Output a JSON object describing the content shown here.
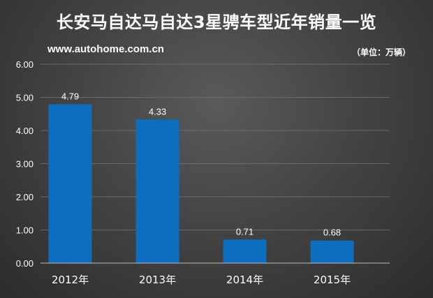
{
  "header": {
    "title": "长安马自达马自达3星骋车型近年销量一览",
    "source": "www.autohome.com.cn",
    "unit": "（单位：万辆）"
  },
  "colors": {
    "bar": "#0d6ebf",
    "gridline": "#777777",
    "text": "#ffffff"
  },
  "chart_data": {
    "type": "bar",
    "title": "长安马自达马自达3星骋车型近年销量一览",
    "xlabel": "",
    "ylabel": "",
    "unit": "（单位：万辆）",
    "categories": [
      "2012年",
      "2013年",
      "2014年",
      "2015年"
    ],
    "values": [
      4.79,
      4.33,
      0.71,
      0.68
    ],
    "data_labels": [
      "4.79",
      "4.33",
      "0.71",
      "0.68"
    ],
    "ylim": [
      0,
      6
    ],
    "yticks": [
      "0.00",
      "1.00",
      "2.00",
      "3.00",
      "4.00",
      "5.00",
      "6.00"
    ],
    "grid": true,
    "legend": "none"
  }
}
